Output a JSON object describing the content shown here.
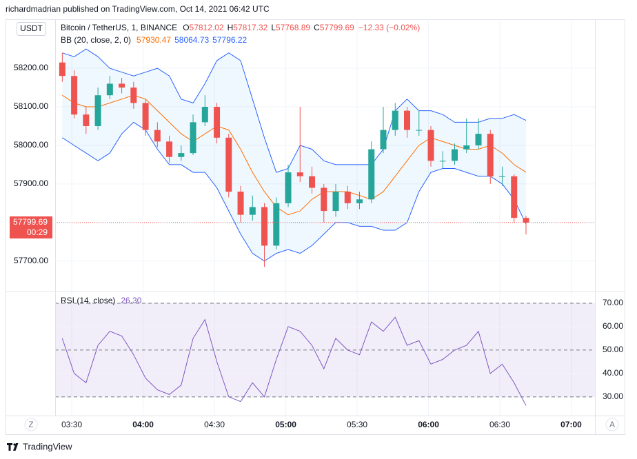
{
  "header": {
    "publisher": "richardmadrian published on TradingView.com, Oct 14, 2021 06:42 UTC",
    "brand": "TradingView"
  },
  "chart_data": [
    {
      "type": "candlestick",
      "title": "Bitcoin / TetherUS, 1, BINANCE",
      "currency": "USDT",
      "ohlc_keys": [
        "O",
        "H",
        "L",
        "C"
      ],
      "change": "−12.33 (−0.02%)",
      "countdown": "00:29",
      "x": [
        "03:26",
        "03:31",
        "03:36",
        "03:41",
        "03:46",
        "03:51",
        "03:56",
        "04:01",
        "04:06",
        "04:11",
        "04:16",
        "04:21",
        "04:26",
        "04:31",
        "04:36",
        "04:41",
        "04:46",
        "04:51",
        "04:56",
        "05:01",
        "05:06",
        "05:11",
        "05:16",
        "05:21",
        "05:26",
        "05:31",
        "05:36",
        "05:41",
        "05:46",
        "05:51",
        "05:56",
        "06:01",
        "06:06",
        "06:11",
        "06:16",
        "06:21",
        "06:26",
        "06:31",
        "06:36",
        "06:41"
      ],
      "open": [
        58215,
        58180,
        58080,
        58050,
        58130,
        58160,
        58150,
        58110,
        58040,
        58010,
        57970,
        57980,
        58060,
        58100,
        58020,
        57880,
        57820,
        57840,
        57740,
        57850,
        57930,
        57920,
        57890,
        57830,
        57880,
        57850,
        57860,
        57990,
        58040,
        58090,
        58040,
        58040,
        57960,
        57960,
        57990,
        58000,
        58030,
        57920,
        57920,
        57812.02
      ],
      "high": [
        58240,
        58195,
        58100,
        58150,
        58180,
        58175,
        58165,
        58120,
        58060,
        58025,
        58000,
        58080,
        58130,
        58110,
        58030,
        57895,
        57870,
        57850,
        57865,
        57950,
        58100,
        57945,
        57900,
        57900,
        57895,
        57880,
        58010,
        58100,
        58110,
        58100,
        58090,
        58050,
        57985,
        58005,
        58070,
        58070,
        58040,
        57945,
        57925,
        57817.32
      ],
      "low": [
        58165,
        58070,
        58030,
        58040,
        58120,
        58135,
        58095,
        58025,
        57995,
        57955,
        57960,
        57975,
        58050,
        58005,
        57865,
        57800,
        57805,
        57685,
        57730,
        57840,
        57905,
        57875,
        57800,
        57815,
        57835,
        57835,
        57850,
        57980,
        58025,
        58020,
        58025,
        57945,
        57940,
        57950,
        57980,
        57990,
        57900,
        57895,
        57800,
        57768.89
      ],
      "close": [
        58180,
        58080,
        58050,
        58130,
        58160,
        58150,
        58110,
        58040,
        58010,
        57970,
        57980,
        58060,
        58100,
        58020,
        57880,
        57820,
        57840,
        57740,
        57850,
        57930,
        57920,
        57890,
        57830,
        57880,
        57850,
        57860,
        57990,
        58040,
        58090,
        58040,
        58040,
        57960,
        57960,
        57990,
        58000,
        58030,
        57920,
        57920,
        57812.02,
        57799.69
      ],
      "up_color": "#26a69a",
      "down_color": "#ef5350",
      "xlim": [
        "03:23",
        "07:10"
      ],
      "xticks": [
        "03:30",
        "04:00",
        "04:30",
        "05:00",
        "05:30",
        "06:00",
        "06:30",
        "07:00"
      ],
      "ylim": [
        57621,
        58327
      ],
      "yticks": [
        {
          "value": 57700,
          "label": "57700.00"
        },
        {
          "value": 57800,
          "label": "57800.00"
        },
        {
          "value": 57900,
          "label": "57900.00"
        },
        {
          "value": 58000,
          "label": "58000.00"
        },
        {
          "value": 58100,
          "label": "58100.00"
        },
        {
          "value": 58200,
          "label": "58200.00"
        }
      ],
      "grid": true,
      "bb": {
        "label": "BB (20, close, 2, 0)",
        "fill": "rgba(33,150,243,0.07)",
        "basis": {
          "color": "#ff6d00",
          "values": [
            58130,
            58110,
            58100,
            58100,
            58110,
            58120,
            58130,
            58120,
            58090,
            58060,
            58030,
            58010,
            58030,
            58050,
            58040,
            57990,
            57930,
            57880,
            57840,
            57820,
            57830,
            57860,
            57880,
            57880,
            57880,
            57870,
            57860,
            57880,
            57920,
            57960,
            58000,
            58020,
            58010,
            58000,
            57990,
            57990,
            58000,
            57980,
            57950,
            57930.47
          ]
        },
        "upper": {
          "color": "#2962ff",
          "values": [
            58240,
            58230,
            58250,
            58230,
            58200,
            58190,
            58180,
            58190,
            58200,
            58180,
            58120,
            58110,
            58160,
            58220,
            58240,
            58220,
            58120,
            58020,
            57930,
            57940,
            58000,
            57990,
            57960,
            57950,
            57950,
            57950,
            57950,
            57990,
            58090,
            58120,
            58090,
            58090,
            58080,
            58060,
            58060,
            58060,
            58070,
            58070,
            58080,
            58064.73
          ]
        },
        "lower": {
          "color": "#2962ff",
          "values": [
            58020,
            58000,
            57980,
            57960,
            57980,
            58030,
            58060,
            58040,
            57990,
            57950,
            57950,
            57930,
            57930,
            57890,
            57830,
            57770,
            57720,
            57700,
            57720,
            57730,
            57720,
            57740,
            57770,
            57800,
            57800,
            57790,
            57790,
            57780,
            57780,
            57800,
            57880,
            57930,
            57940,
            57940,
            57930,
            57920,
            57920,
            57900,
            57860,
            57796.22
          ]
        }
      }
    },
    {
      "type": "line",
      "title": "RSI (14, close)",
      "color": "#7e57c2",
      "values": [
        55,
        40,
        36,
        52,
        58,
        56,
        48,
        38,
        33,
        31,
        35,
        55,
        63,
        45,
        30,
        28,
        36,
        30,
        46,
        60,
        58,
        52,
        42,
        55,
        50,
        48,
        62,
        58,
        64,
        52,
        54,
        44,
        46,
        50,
        52,
        58,
        40,
        44,
        36,
        26.3
      ],
      "legend_value": {
        "value": 26.3,
        "label": "26.30"
      },
      "ylim": [
        22,
        74.7
      ],
      "yticks": [
        {
          "value": 30,
          "label": "30.00"
        },
        {
          "value": 40,
          "label": "40.00"
        },
        {
          "value": 50,
          "label": "50.00"
        },
        {
          "value": 60,
          "label": "60.00"
        },
        {
          "value": 70,
          "label": "70.00"
        }
      ],
      "levels": [
        70,
        50,
        30
      ],
      "band_fill": "rgba(126,87,194,0.1)"
    }
  ],
  "buttons": [
    "Z",
    "A"
  ]
}
